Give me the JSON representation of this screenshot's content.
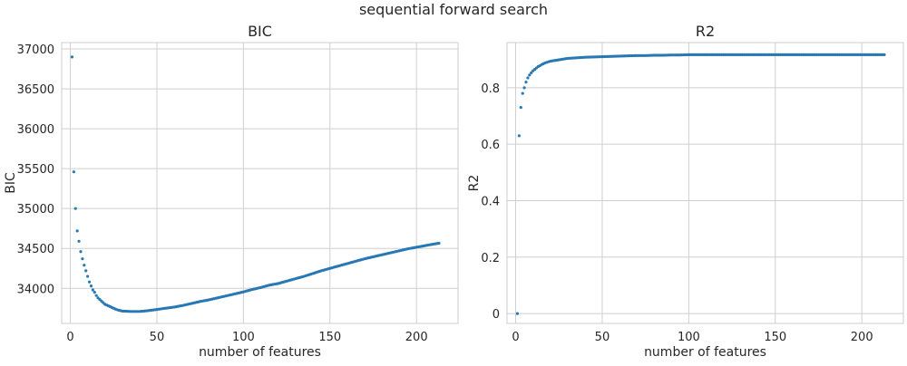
{
  "figure": {
    "suptitle": "sequential forward search"
  },
  "colors": {
    "marker": "#2878b5",
    "grid": "#cfcfcf",
    "axes_edge": "#cccccc",
    "text": "#262626",
    "background": "#ffffff"
  },
  "chart_data": [
    {
      "type": "scatter",
      "title": "BIC",
      "xlabel": "number of features",
      "ylabel": "BIC",
      "xlim": [
        -5,
        224
      ],
      "ylim": [
        33560,
        37080
      ],
      "xticks": [
        0,
        50,
        100,
        150,
        200
      ],
      "yticks": [
        34000,
        34500,
        35000,
        35500,
        36000,
        36500,
        37000
      ],
      "grid": true,
      "series": [
        {
          "x": [
            1,
            2,
            3,
            4,
            5,
            6,
            7,
            8,
            9,
            10,
            11,
            12,
            13,
            14,
            15,
            16,
            17,
            18,
            19,
            20,
            22,
            24,
            26,
            28,
            30,
            35,
            40,
            45,
            50,
            55,
            60,
            65,
            70,
            75,
            80,
            85,
            90,
            95,
            100,
            105,
            110,
            115,
            120,
            125,
            130,
            135,
            140,
            145,
            150,
            155,
            160,
            165,
            170,
            175,
            180,
            185,
            190,
            195,
            200,
            205,
            210,
            213
          ],
          "y": [
            36900,
            35460,
            35000,
            34720,
            34590,
            34460,
            34370,
            34290,
            34220,
            34150,
            34080,
            34030,
            33980,
            33950,
            33910,
            33880,
            33860,
            33840,
            33820,
            33800,
            33780,
            33760,
            33740,
            33725,
            33715,
            33710,
            33710,
            33720,
            33735,
            33750,
            33765,
            33785,
            33810,
            33835,
            33855,
            33880,
            33905,
            33930,
            33955,
            33985,
            34010,
            34040,
            34060,
            34090,
            34120,
            34150,
            34185,
            34220,
            34250,
            34280,
            34310,
            34340,
            34370,
            34395,
            34420,
            34445,
            34470,
            34495,
            34515,
            34535,
            34555,
            34565
          ]
        }
      ]
    },
    {
      "type": "scatter",
      "title": "R2",
      "xlabel": "number of features",
      "ylabel": "R2",
      "xlim": [
        -5,
        224
      ],
      "ylim": [
        -0.035,
        0.96
      ],
      "xticks": [
        0,
        50,
        100,
        150,
        200
      ],
      "yticks": [
        0.0,
        0.2,
        0.4,
        0.6,
        0.8
      ],
      "grid": true,
      "series": [
        {
          "x": [
            1,
            2,
            3,
            4,
            5,
            6,
            7,
            8,
            9,
            10,
            11,
            12,
            13,
            14,
            15,
            16,
            17,
            18,
            19,
            20,
            22,
            24,
            26,
            28,
            30,
            35,
            40,
            45,
            50,
            55,
            60,
            65,
            70,
            75,
            80,
            85,
            90,
            95,
            100,
            105,
            110,
            115,
            120,
            125,
            130,
            135,
            140,
            145,
            150,
            155,
            160,
            165,
            170,
            175,
            180,
            185,
            190,
            195,
            200,
            205,
            210,
            213
          ],
          "y": [
            0.0,
            0.63,
            0.73,
            0.78,
            0.8,
            0.82,
            0.835,
            0.845,
            0.853,
            0.86,
            0.865,
            0.87,
            0.875,
            0.878,
            0.882,
            0.885,
            0.888,
            0.89,
            0.892,
            0.894,
            0.896,
            0.898,
            0.9,
            0.902,
            0.904,
            0.906,
            0.908,
            0.909,
            0.91,
            0.911,
            0.912,
            0.913,
            0.914,
            0.914,
            0.915,
            0.915,
            0.916,
            0.916,
            0.917,
            0.917,
            0.917,
            0.917,
            0.917,
            0.917,
            0.917,
            0.917,
            0.917,
            0.917,
            0.917,
            0.917,
            0.917,
            0.917,
            0.917,
            0.917,
            0.917,
            0.917,
            0.917,
            0.917,
            0.917,
            0.917,
            0.917,
            0.917
          ]
        }
      ]
    }
  ]
}
